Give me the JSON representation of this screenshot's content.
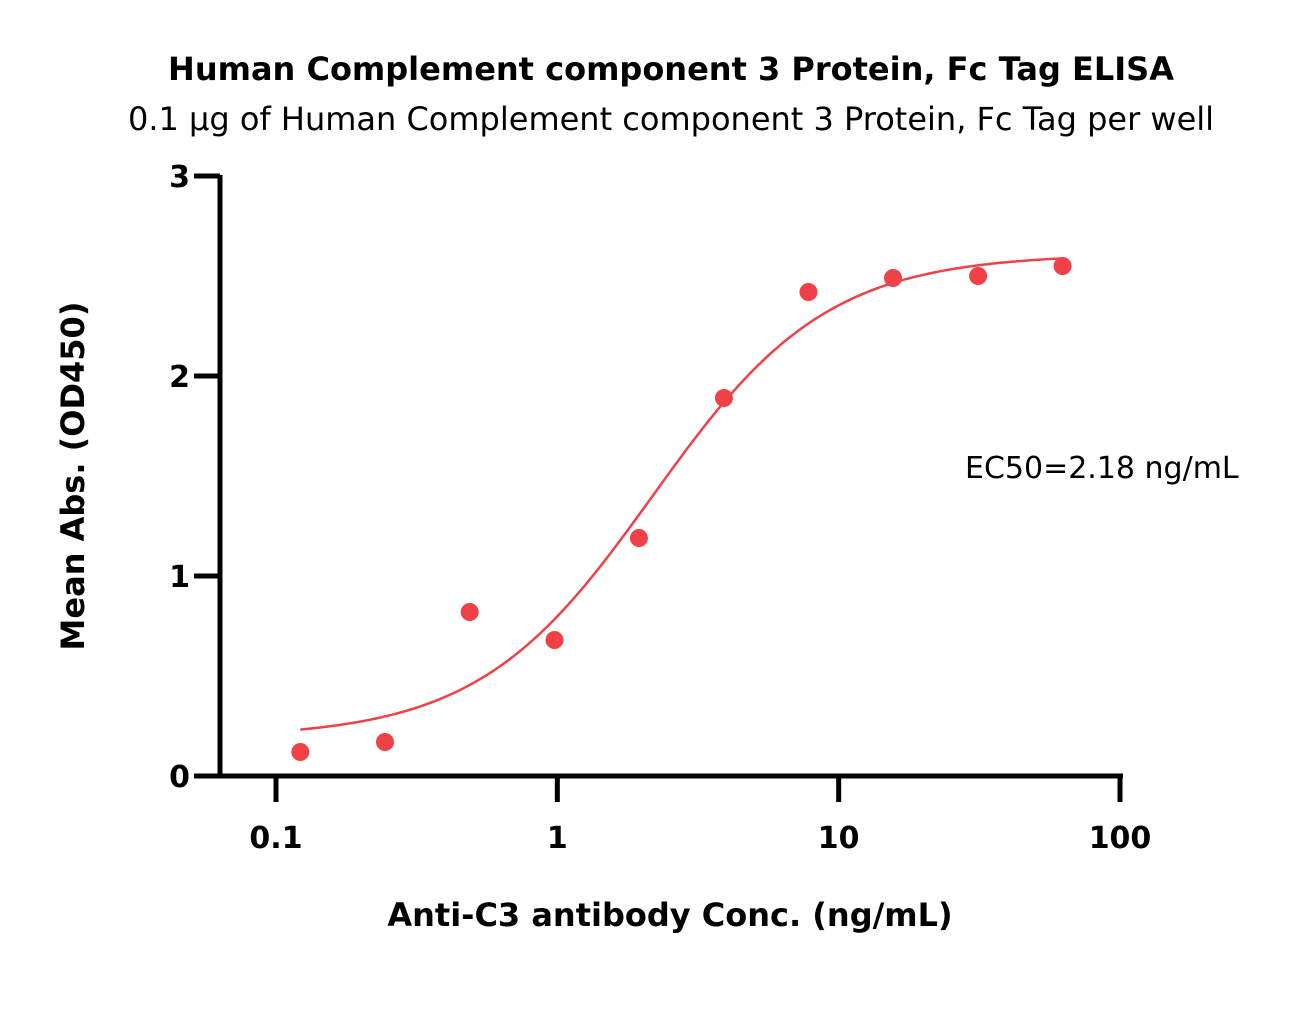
{
  "chart_data": {
    "type": "scatter",
    "title": "Human Complement component 3 Protein, Fc Tag ELISA",
    "subtitle": "0.1 μg of Human Complement component 3 Protein, Fc Tag per well",
    "xlabel": "Anti-C3 antibody Conc. (ng/mL)",
    "ylabel": "Mean Abs. (OD450)",
    "xscale": "log",
    "xlim": [
      0.06,
      100
    ],
    "ylim": [
      0,
      3
    ],
    "xticks": [
      0.1,
      1,
      10,
      100
    ],
    "xtick_labels": [
      "0.1",
      "1",
      "10",
      "100"
    ],
    "yticks": [
      0,
      1,
      2,
      3
    ],
    "ytick_labels": [
      "0",
      "1",
      "2",
      "3"
    ],
    "grid": false,
    "color": "#f04148",
    "series": [
      {
        "x": [
          0.122,
          0.244,
          0.488,
          0.977,
          1.95,
          3.91,
          7.81,
          15.6,
          31.3,
          62.5
        ],
        "y": [
          0.12,
          0.17,
          0.82,
          0.68,
          1.19,
          1.89,
          2.42,
          2.49,
          2.5,
          2.55
        ]
      }
    ],
    "fit": {
      "model": "4PL",
      "bottom": 0.19,
      "top": 2.61,
      "ec50": 2.18,
      "hill": 1.4,
      "x_range": [
        0.122,
        62.5
      ]
    },
    "annotations": [
      {
        "text": "EC50=2.18 ng/mL"
      }
    ]
  }
}
